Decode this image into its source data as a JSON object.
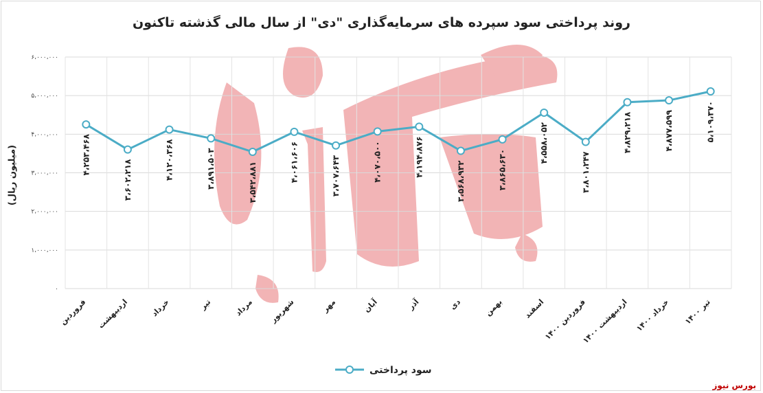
{
  "chart_data": {
    "type": "line",
    "title": "روند پرداختی سود سپرده های سرمایه‌گذاری \"دی\" از سال مالی گذشته تاکنون",
    "ylabel": "(میلیون ریال)",
    "xlabel": "",
    "ylim": [
      0,
      6000000
    ],
    "yticks": [
      "۰",
      "۱،۰۰۰،۰۰۰",
      "۲،۰۰۰،۰۰۰",
      "۳،۰۰۰،۰۰۰",
      "۴،۰۰۰،۰۰۰",
      "۵،۰۰۰،۰۰۰",
      "۶،۰۰۰،۰۰۰"
    ],
    "grid": true,
    "legend_position": "bottom",
    "categories": [
      "فروردین",
      "اردیبهشت",
      "خرداد",
      "تیر",
      "مرداد",
      "شهریور",
      "مهر",
      "آبان",
      "آذر",
      "دی",
      "بهمن",
      "اسفند",
      "فروردین ۱۴۰۰",
      "اردیبهشت ۱۴۰۰",
      "خرداد ۱۴۰۰",
      "تیر ۱۴۰۰"
    ],
    "series": [
      {
        "name": "سود پرداختی",
        "color": "#4bacc6",
        "values": [
          4253468,
          3602218,
          4120368,
          3891503,
          3542881,
          4061606,
          3707643,
          4070500,
          4194876,
          3568932,
          3865630,
          4558052,
          3801247,
          4829218,
          4877599,
          5109370
        ],
        "labels": [
          "۴،۲۵۳،۴۶۸",
          "۳،۶۰۲،۲۱۸",
          "۴،۱۲۰،۳۶۸",
          "۳،۸۹۱،۵۰۳",
          "۳،۵۴۲،۸۸۱",
          "۴،۰۶۱،۶۰۶",
          "۳،۷۰۷،۶۴۳",
          "۴،۰۷۰،۵۰۰",
          "۴،۱۹۴،۸۷۶",
          "۳،۵۶۸،۹۳۲",
          "۳،۸۶۵،۶۳۰",
          "۴،۵۵۸،۰۵۲",
          "۳،۸۰۱،۲۴۷",
          "۴،۸۲۹،۲۱۸",
          "۴،۸۷۷،۵۹۹",
          "۵،۱۰۹،۳۷۰"
        ]
      }
    ]
  },
  "watermark": "بورس نیوز",
  "source": "بورس نیوز"
}
